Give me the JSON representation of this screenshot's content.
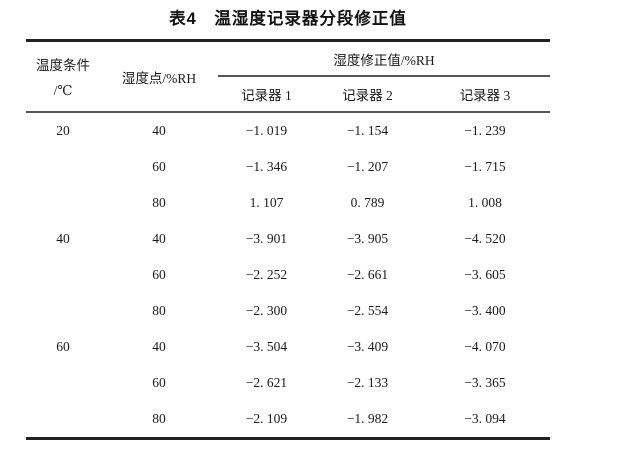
{
  "page": {
    "background": "#ffffff",
    "text_color": "#1b1b1b",
    "rule_dark": "#222222",
    "rule_light": "#555555"
  },
  "title": "表4　温湿度记录器分段修正值",
  "table": {
    "header": {
      "temp_line1": "温度条件",
      "temp_line2": "/℃",
      "humidity_point": "湿度点/%RH",
      "correction_group": "湿度修正值/%RH",
      "recorders": [
        "记录器 1",
        "记录器 2",
        "记录器 3"
      ]
    },
    "rows": [
      {
        "temp": "20",
        "rh": "40",
        "r1": "−1. 019",
        "r2": "−1. 154",
        "r3": "−1. 239"
      },
      {
        "temp": "",
        "rh": "60",
        "r1": "−1. 346",
        "r2": "−1. 207",
        "r3": "−1. 715"
      },
      {
        "temp": "",
        "rh": "80",
        "r1": "1. 107",
        "r2": "0. 789",
        "r3": "1. 008"
      },
      {
        "temp": "40",
        "rh": "40",
        "r1": "−3. 901",
        "r2": "−3. 905",
        "r3": "−4. 520"
      },
      {
        "temp": "",
        "rh": "60",
        "r1": "−2. 252",
        "r2": "−2. 661",
        "r3": "−3. 605"
      },
      {
        "temp": "",
        "rh": "80",
        "r1": "−2. 300",
        "r2": "−2. 554",
        "r3": "−3. 400"
      },
      {
        "temp": "60",
        "rh": "40",
        "r1": "−3. 504",
        "r2": "−3. 409",
        "r3": "−4. 070"
      },
      {
        "temp": "",
        "rh": "60",
        "r1": "−2. 621",
        "r2": "−2. 133",
        "r3": "−3. 365"
      },
      {
        "temp": "",
        "rh": "80",
        "r1": "−2. 109",
        "r2": "−1. 982",
        "r3": "−3. 094"
      }
    ]
  },
  "chart_data": {
    "type": "table",
    "title": "表4 温湿度记录器分段修正值",
    "columns": [
      "温度条件/℃",
      "湿度点/%RH",
      "湿度修正值/%RH 记录器1",
      "湿度修正值/%RH 记录器2",
      "湿度修正值/%RH 记录器3"
    ],
    "rows": [
      [
        20,
        40,
        -1.019,
        -1.154,
        -1.239
      ],
      [
        20,
        60,
        -1.346,
        -1.207,
        -1.715
      ],
      [
        20,
        80,
        1.107,
        0.789,
        1.008
      ],
      [
        40,
        40,
        -3.901,
        -3.905,
        -4.52
      ],
      [
        40,
        60,
        -2.252,
        -2.661,
        -3.605
      ],
      [
        40,
        80,
        -2.3,
        -2.554,
        -3.4
      ],
      [
        60,
        40,
        -3.504,
        -3.409,
        -4.07
      ],
      [
        60,
        60,
        -2.621,
        -2.133,
        -3.365
      ],
      [
        60,
        80,
        -2.109,
        -1.982,
        -3.094
      ]
    ]
  }
}
